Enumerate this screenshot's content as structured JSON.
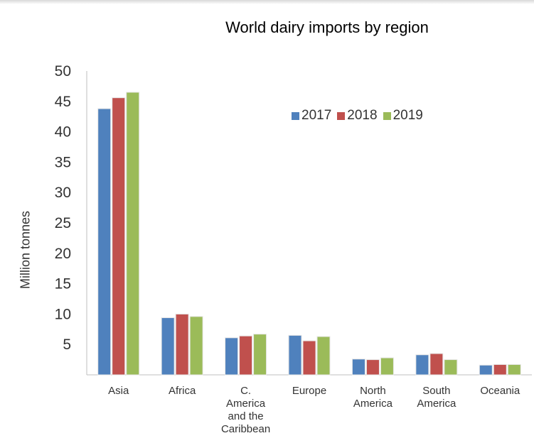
{
  "chart_data": {
    "type": "bar",
    "title": "World dairy imports by region",
    "ylabel": "Million tonnes",
    "xlabel": "",
    "ylim": [
      0,
      50
    ],
    "yticks": [
      5,
      10,
      15,
      20,
      25,
      30,
      35,
      40,
      45,
      50
    ],
    "grid": false,
    "legend_position": "top-right",
    "categories": [
      "Asia",
      "Africa",
      "C.\nAmerica\nand the\nCaribbean",
      "Europe",
      "North\nAmerica",
      "South\nAmerica",
      "Oceania"
    ],
    "series": [
      {
        "name": "2017",
        "color": "#4f81bd",
        "values": [
          43.8,
          9.4,
          6.1,
          6.5,
          2.6,
          3.3,
          1.6
        ]
      },
      {
        "name": "2018",
        "color": "#c0504d",
        "values": [
          45.6,
          10.0,
          6.4,
          5.6,
          2.5,
          3.5,
          1.7
        ]
      },
      {
        "name": "2019",
        "color": "#9bbb59",
        "values": [
          46.5,
          9.6,
          6.7,
          6.3,
          2.8,
          2.5,
          1.7
        ]
      }
    ]
  }
}
